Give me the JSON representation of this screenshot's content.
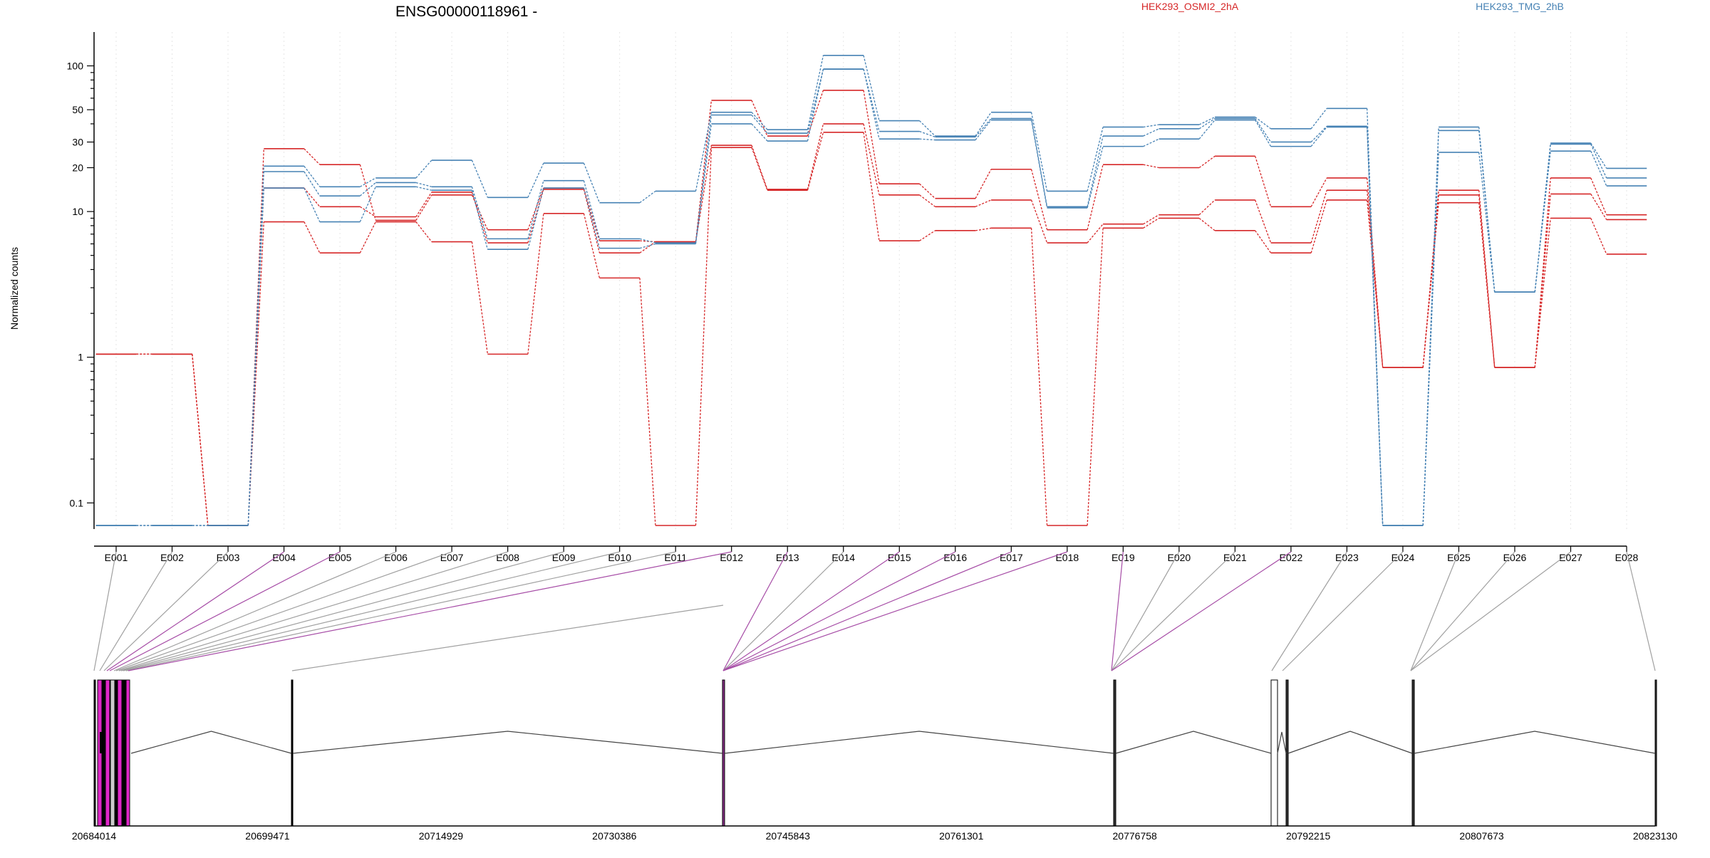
{
  "chart_data": {
    "type": "line",
    "title": "ENSG00000118961 -",
    "ylabel": "Normalized counts",
    "xlabel": "",
    "yscale": "log",
    "ylim": [
      0.07,
      140
    ],
    "yticks": [
      0.1,
      1,
      10,
      20,
      30,
      50,
      100
    ],
    "grid": true,
    "legend_placement": "top",
    "categories": [
      "E001",
      "E002",
      "E003",
      "E004",
      "E005",
      "E006",
      "E007",
      "E008",
      "E009",
      "E010",
      "E011",
      "E012",
      "E013",
      "E014",
      "E015",
      "E016",
      "E017",
      "E018",
      "E019",
      "E020",
      "E021",
      "E022",
      "E023",
      "E024",
      "E025",
      "E026",
      "E027",
      "E028"
    ],
    "series": [
      {
        "name": "HEK293_OSMI2_2hA",
        "color": "#d62728",
        "values": [
          1.05,
          1.05,
          0.07,
          27,
          21,
          8.7,
          13,
          7.5,
          14.5,
          6.3,
          6.2,
          58,
          33,
          68,
          15.5,
          12.3,
          19.5,
          7.5,
          21,
          20,
          24,
          10.8,
          17,
          0.85,
          14,
          0.85,
          17,
          9.5
        ]
      },
      {
        "name": "HEK293_OSMI2_2hA",
        "color": "#d62728",
        "values": [
          1.05,
          1.05,
          0.07,
          14.5,
          10.8,
          9.2,
          13.6,
          6.1,
          14.2,
          5.2,
          6.2,
          28.5,
          14.2,
          40,
          13,
          10.8,
          12,
          6.1,
          8.2,
          9.5,
          12,
          6.1,
          14,
          0.85,
          13,
          0.85,
          13.2,
          8.8
        ]
      },
      {
        "name": "HEK293_OSMI2_2hA",
        "color": "#d62728",
        "values": [
          1.05,
          1.05,
          0.07,
          8.5,
          5.2,
          8.5,
          6.2,
          1.05,
          9.7,
          3.5,
          0.07,
          27.5,
          14,
          35,
          6.3,
          7.4,
          7.7,
          0.07,
          7.7,
          9,
          7.4,
          5.2,
          12,
          0.85,
          11.5,
          0.85,
          9,
          5.1
        ]
      },
      {
        "name": "HEK293_TMG_2hB",
        "color": "#4682b4",
        "values": [
          0.07,
          0.07,
          0.07,
          20.5,
          14.8,
          17,
          22.5,
          12.5,
          21.5,
          11.5,
          13.8,
          48,
          36.5,
          118,
          42,
          33,
          48,
          13.8,
          38,
          39.5,
          44.5,
          37,
          51,
          0.07,
          38,
          2.8,
          29.5,
          19.8
        ]
      },
      {
        "name": "HEK293_TMG_2hB",
        "color": "#4682b4",
        "values": [
          0.07,
          0.07,
          0.07,
          18.8,
          12.8,
          15.8,
          14.8,
          6.5,
          16.3,
          6.5,
          6.1,
          46,
          34.5,
          95,
          35.5,
          32.5,
          43.5,
          10.8,
          33,
          37,
          43.5,
          30,
          38.5,
          0.07,
          36,
          2.8,
          29,
          17
        ]
      },
      {
        "name": "HEK293_TMG_2hB",
        "color": "#4682b4",
        "values": [
          0.07,
          0.07,
          0.07,
          14.5,
          8.5,
          14.8,
          14,
          5.5,
          14.5,
          5.6,
          6,
          40,
          30.5,
          95,
          31.5,
          31,
          42.5,
          10.6,
          28,
          31.5,
          42.5,
          28,
          38,
          0.07,
          25.5,
          2.8,
          26,
          15
        ]
      }
    ],
    "genome_coordinates": [
      "20684014",
      "20699471",
      "20714929",
      "20730386",
      "20745843",
      "20761301",
      "20776758",
      "20792215",
      "20807673",
      "20823130"
    ]
  }
}
